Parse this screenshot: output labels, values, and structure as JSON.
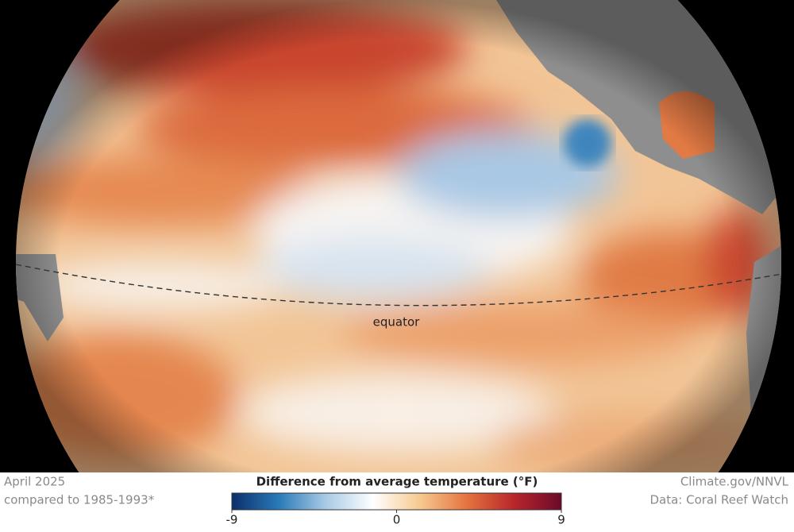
{
  "map": {
    "label": "equator"
  },
  "caption": {
    "date": "April 2025",
    "baseline": "compared to 1985-1993*"
  },
  "credit": {
    "source": "Climate.gov/NNVL",
    "data": "Data: Coral Reef Watch"
  },
  "colorbar": {
    "title": "Difference from average temperature (°F)",
    "lim": [
      -9,
      9
    ],
    "ticks": [
      -9,
      0,
      9
    ],
    "colors": [
      "#0b2f6b",
      "#2a7ab8",
      "#a9cbe6",
      "#ffffff",
      "#f6c98f",
      "#e4733f",
      "#b8262b",
      "#6b0a2a"
    ]
  }
}
